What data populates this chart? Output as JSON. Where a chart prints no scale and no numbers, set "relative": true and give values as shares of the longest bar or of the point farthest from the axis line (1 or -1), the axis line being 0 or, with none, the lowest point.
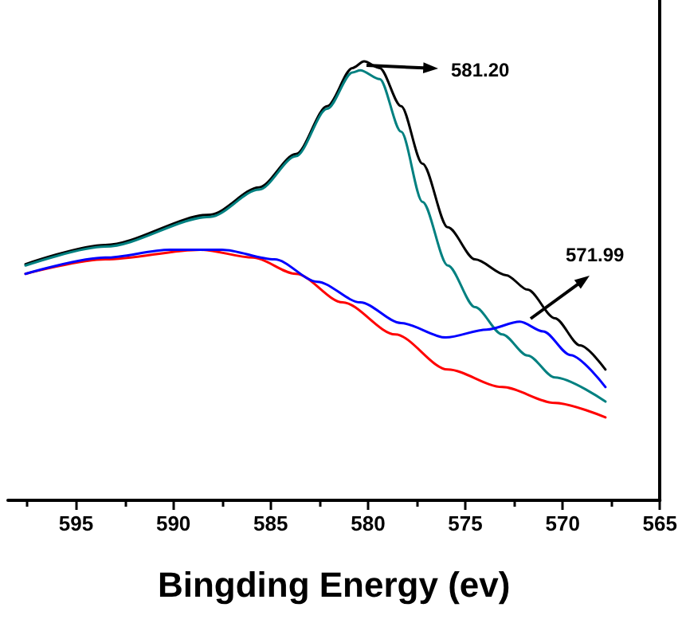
{
  "chart_data": {
    "type": "line",
    "relative": true,
    "xlabel": "Bingding Energy (ev)",
    "xlim": [
      598.5,
      565
    ],
    "xticks": [
      595,
      590,
      585,
      580,
      575,
      570,
      565
    ],
    "grid": false,
    "marker": "none",
    "line_style": "solid",
    "tick_labels": "x",
    "annotations": [
      "581.20",
      "571.99"
    ],
    "series": [
      {
        "color": "#000000",
        "x": [
          597.6,
          593.5,
          588.1,
          585.6,
          583.7,
          582.1,
          580.8,
          580.2,
          579.4,
          578.3,
          577.2,
          575.9,
          574.5,
          572.9,
          571.8,
          570.4,
          569.1,
          567.8
        ],
        "values": [
          0.538,
          0.582,
          0.651,
          0.713,
          0.789,
          0.898,
          0.985,
          1.0,
          0.985,
          0.898,
          0.767,
          0.622,
          0.549,
          0.513,
          0.48,
          0.415,
          0.353,
          0.298
        ]
      },
      {
        "color": "#008080",
        "x": [
          597.6,
          593.5,
          588.1,
          585.6,
          583.7,
          582.1,
          580.8,
          580.4,
          579.4,
          578.3,
          577.2,
          575.9,
          574.5,
          573.1,
          571.8,
          570.4,
          567.8
        ],
        "values": [
          0.535,
          0.578,
          0.646,
          0.708,
          0.784,
          0.892,
          0.975,
          0.98,
          0.96,
          0.84,
          0.68,
          0.535,
          0.44,
          0.378,
          0.33,
          0.28,
          0.225
        ]
      },
      {
        "color": "#ff0000",
        "x": [
          597.6,
          593.5,
          588.6,
          585.9,
          583.7,
          581.3,
          578.6,
          575.9,
          573.1,
          570.4,
          567.8
        ],
        "values": [
          0.516,
          0.549,
          0.571,
          0.553,
          0.516,
          0.451,
          0.378,
          0.298,
          0.258,
          0.222,
          0.189
        ]
      },
      {
        "color": "#0000ff",
        "x": [
          597.6,
          593.5,
          590.2,
          587.5,
          584.8,
          582.6,
          580.4,
          578.3,
          576.0,
          573.9,
          572.2,
          571.0,
          569.6,
          567.8
        ],
        "values": [
          0.516,
          0.553,
          0.571,
          0.571,
          0.549,
          0.498,
          0.451,
          0.404,
          0.371,
          0.389,
          0.407,
          0.385,
          0.331,
          0.258
        ]
      }
    ]
  }
}
